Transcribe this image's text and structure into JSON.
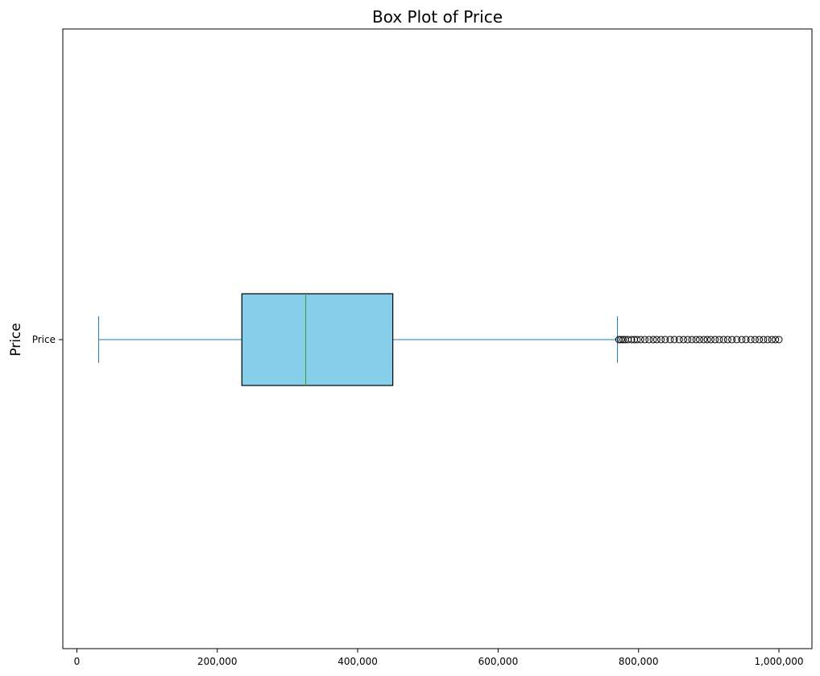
{
  "chart_data": {
    "type": "boxplot",
    "title": "Box Plot of Price",
    "ylabel": "Price",
    "xlabel": "",
    "orientation": "horizontal",
    "xlim": [
      -20000,
      1047000
    ],
    "x_ticks": [
      0,
      200000,
      400000,
      600000,
      800000,
      1000000
    ],
    "x_tick_labels": [
      "0",
      "200,000",
      "400,000",
      "600,000",
      "800,000",
      "1,000,000"
    ],
    "categories": [
      "Price"
    ],
    "series": [
      {
        "whisker_low": 31000,
        "q1": 235000,
        "median": 326000,
        "q3": 450000,
        "whisker_high": 770000,
        "outliers": [
          772000,
          775000,
          778000,
          781000,
          785000,
          790000,
          794000,
          798000,
          803000,
          809000,
          815000,
          821000,
          826000,
          832000,
          838000,
          845000,
          851000,
          858000,
          864000,
          870000,
          876000,
          882000,
          887000,
          893000,
          898000,
          903000,
          909000,
          915000,
          921000,
          927000,
          933000,
          940000,
          947000,
          953000,
          960000,
          966000,
          972000,
          978000,
          984000,
          990000,
          995000,
          1000000
        ]
      }
    ],
    "colors": {
      "box_fill": "#87ceeb",
      "box_edge": "#000000",
      "whisker": "#1f77b4",
      "median": "#2ca02c",
      "outlier": "#000000"
    },
    "grid": false
  }
}
